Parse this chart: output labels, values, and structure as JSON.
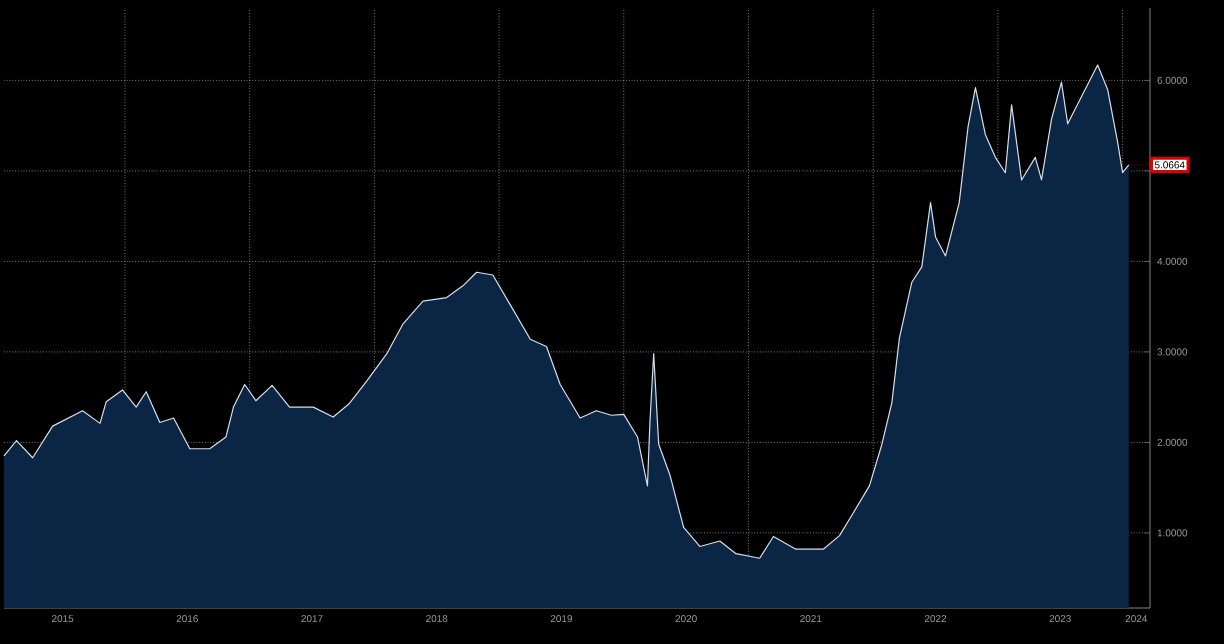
{
  "chart_data": {
    "type": "area",
    "x": [
      2015.03,
      2015.13,
      2015.26,
      2015.42,
      2015.66,
      2015.8,
      2015.85,
      2015.98,
      2016.09,
      2016.17,
      2016.28,
      2016.39,
      2016.52,
      2016.68,
      2016.81,
      2016.87,
      2016.96,
      2017.05,
      2017.18,
      2017.32,
      2017.51,
      2017.67,
      2017.8,
      2017.94,
      2018.1,
      2018.23,
      2018.39,
      2018.58,
      2018.71,
      2018.82,
      2018.95,
      2019.09,
      2019.25,
      2019.38,
      2019.49,
      2019.65,
      2019.78,
      2019.9,
      2020.0,
      2020.11,
      2020.19,
      2020.21,
      2020.24,
      2020.28,
      2020.37,
      2020.48,
      2020.61,
      2020.77,
      2020.9,
      2021.09,
      2021.2,
      2021.38,
      2021.6,
      2021.73,
      2021.84,
      2021.97,
      2022.07,
      2022.15,
      2022.21,
      2022.31,
      2022.39,
      2022.46,
      2022.5,
      2022.58,
      2022.69,
      2022.76,
      2022.82,
      2022.9,
      2022.98,
      2023.06,
      2023.11,
      2023.19,
      2023.3,
      2023.35,
      2023.43,
      2023.51,
      2023.56,
      2023.67,
      2023.8,
      2023.88,
      2023.96,
      2024.0,
      2024.05
    ],
    "values": [
      1.85,
      2.02,
      1.83,
      2.18,
      2.35,
      2.21,
      2.45,
      2.58,
      2.39,
      2.56,
      2.22,
      2.27,
      1.93,
      1.93,
      2.06,
      2.39,
      2.64,
      2.46,
      2.63,
      2.39,
      2.39,
      2.28,
      2.43,
      2.68,
      2.98,
      3.31,
      3.56,
      3.6,
      3.73,
      3.88,
      3.85,
      3.52,
      3.14,
      3.06,
      2.64,
      2.27,
      2.35,
      2.3,
      2.31,
      2.06,
      1.52,
      2.23,
      2.98,
      1.98,
      1.64,
      1.06,
      0.85,
      0.91,
      0.77,
      0.72,
      0.96,
      0.82,
      0.82,
      0.97,
      1.22,
      1.52,
      1.98,
      2.44,
      3.15,
      3.77,
      3.94,
      4.65,
      4.27,
      4.06,
      4.65,
      5.48,
      5.92,
      5.4,
      5.15,
      4.98,
      5.73,
      4.9,
      5.15,
      4.9,
      5.57,
      5.98,
      5.52,
      5.82,
      6.17,
      5.9,
      5.32,
      4.98,
      5.0664
    ],
    "color": "#0b2545",
    "xlim": [
      2015.03,
      2024.22
    ],
    "ylim": [
      0.17,
      6.8
    ],
    "xticks": [
      {
        "value": 2015.5,
        "label": "2015"
      },
      {
        "value": 2016,
        "label": null
      },
      {
        "value": 2016.5,
        "label": "2016"
      },
      {
        "value": 2017,
        "label": null
      },
      {
        "value": 2017.5,
        "label": "2017"
      },
      {
        "value": 2018,
        "label": null
      },
      {
        "value": 2018.5,
        "label": "2018"
      },
      {
        "value": 2019,
        "label": null
      },
      {
        "value": 2019.5,
        "label": "2019"
      },
      {
        "value": 2020,
        "label": null
      },
      {
        "value": 2020.5,
        "label": "2020"
      },
      {
        "value": 2021,
        "label": null
      },
      {
        "value": 2021.5,
        "label": "2021"
      },
      {
        "value": 2022,
        "label": null
      },
      {
        "value": 2022.5,
        "label": "2022"
      },
      {
        "value": 2023,
        "label": null
      },
      {
        "value": 2023.5,
        "label": "2023"
      },
      {
        "value": 2024,
        "label": null
      },
      {
        "value": 2024.11,
        "label": "2024"
      }
    ],
    "yticks": [
      {
        "value": 1,
        "label": "1.0000"
      },
      {
        "value": 2,
        "label": "2.0000"
      },
      {
        "value": 3,
        "label": "3.0000"
      },
      {
        "value": 4,
        "label": "4.0000"
      },
      {
        "value": 5,
        "label": null
      },
      {
        "value": 6,
        "label": "6.0000"
      }
    ],
    "grid": true,
    "annotations": [
      {
        "text": "5.0664",
        "x": 2024.05,
        "y": 5.0664
      }
    ]
  }
}
